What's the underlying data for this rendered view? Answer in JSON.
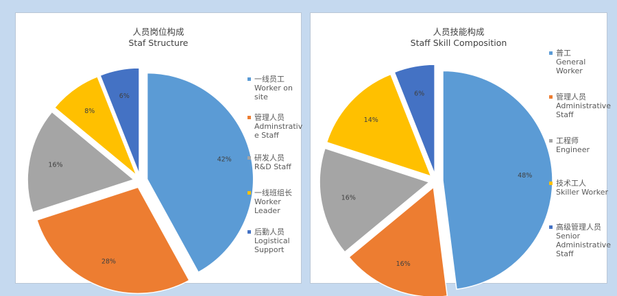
{
  "chart_data": [
    {
      "type": "pie",
      "title_cn": "人员岗位构成",
      "title_en": "Staf Structure",
      "slices": [
        {
          "name_lines": [
            "一线员工",
            "Worker on",
            "site"
          ],
          "value": 42,
          "label": "42%",
          "color": "#5b9bd5"
        },
        {
          "name_lines": [
            "管理人员",
            "Adminstrativ",
            "e Staff"
          ],
          "value": 28,
          "label": "28%",
          "color": "#ed7d31"
        },
        {
          "name_lines": [
            "研发人员",
            "R&D Staff"
          ],
          "value": 16,
          "label": "16%",
          "color": "#a5a5a5"
        },
        {
          "name_lines": [
            "一线班组长",
            "Worker",
            "Leader"
          ],
          "value": 8,
          "label": "8%",
          "color": "#ffc000"
        },
        {
          "name_lines": [
            "后勤人员",
            "Logistical",
            "Support"
          ],
          "value": 6,
          "label": "6%",
          "color": "#4472c4"
        }
      ]
    },
    {
      "type": "pie",
      "title_cn": "人员技能构成",
      "title_en": "Staff Skill Composition",
      "slices": [
        {
          "name_lines": [
            "普工",
            "General",
            "Worker"
          ],
          "value": 48,
          "label": "48%",
          "color": "#5b9bd5"
        },
        {
          "name_lines": [
            "管理人员",
            "Administrative",
            "Staff"
          ],
          "value": 16,
          "label": "16%",
          "color": "#ed7d31"
        },
        {
          "name_lines": [
            "工程师",
            "Engineer"
          ],
          "value": 16,
          "label": "16%",
          "color": "#a5a5a5"
        },
        {
          "name_lines": [
            "技术工人",
            "Skiller Worker"
          ],
          "value": 14,
          "label": "14%",
          "color": "#ffc000"
        },
        {
          "name_lines": [
            "高级管理人员",
            "Senior",
            "Administrative",
            "Staff"
          ],
          "value": 6,
          "label": "6%",
          "color": "#4472c4"
        }
      ]
    }
  ]
}
